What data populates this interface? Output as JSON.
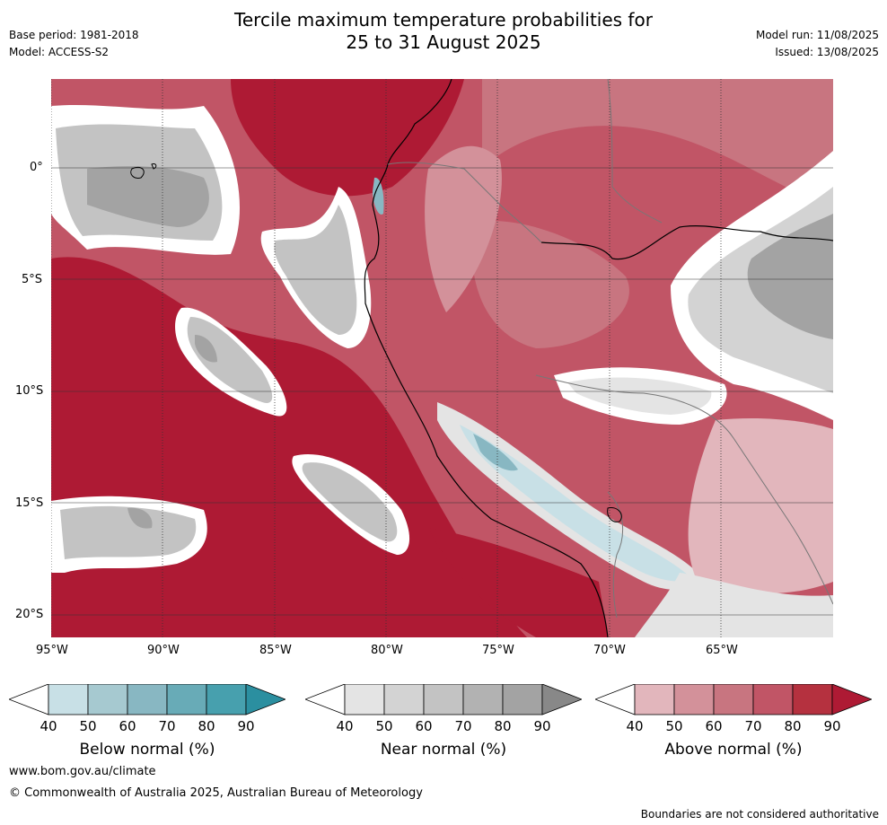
{
  "header": {
    "title_line1": "Tercile maximum temperature probabilities for",
    "title_line2": "25 to 31 August 2025",
    "base_period": "Base period: 1981-2018",
    "model": "Model: ACCESS-S2",
    "model_run": "Model run: 11/08/2025",
    "issued": "Issued: 13/08/2025"
  },
  "map": {
    "lat_labels": [
      "0°",
      "5°S",
      "10°S",
      "15°S",
      "20°S"
    ],
    "lon_labels": [
      "95°W",
      "90°W",
      "85°W",
      "80°W",
      "75°W",
      "70°W",
      "65°W"
    ]
  },
  "legends": [
    {
      "label": "Below normal (%)",
      "ticks": [
        "40",
        "50",
        "60",
        "70",
        "80",
        "90"
      ],
      "colors": [
        "#ffffff",
        "#c8e0e6",
        "#a6c9d0",
        "#88b7c2",
        "#68abb7",
        "#47a0ae",
        "#2b8fa0"
      ]
    },
    {
      "label": "Near normal (%)",
      "ticks": [
        "40",
        "50",
        "60",
        "70",
        "80",
        "90"
      ],
      "colors": [
        "#ffffff",
        "#e4e4e4",
        "#d3d3d3",
        "#c3c3c3",
        "#b2b2b2",
        "#a3a3a3",
        "#888888"
      ]
    },
    {
      "label": "Above normal (%)",
      "ticks": [
        "40",
        "50",
        "60",
        "70",
        "80",
        "90"
      ],
      "colors": [
        "#ffffff",
        "#e2b6bc",
        "#d3919a",
        "#c87580",
        "#c15566",
        "#b5313f",
        "#ae1a34"
      ]
    }
  ],
  "footer": {
    "website": "www.bom.gov.au/climate",
    "copyright": "© Commonwealth of Australia 2025, Australian Bureau of Meteorology",
    "disclaimer": "Boundaries are not considered authoritative"
  }
}
